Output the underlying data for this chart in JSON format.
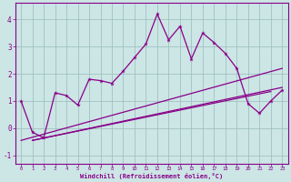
{
  "xlabel": "Windchill (Refroidissement éolien,°C)",
  "bg_color": "#cce5e5",
  "grid_color": "#99bbbb",
  "line_color": "#880088",
  "x_data": [
    0,
    1,
    2,
    3,
    4,
    5,
    6,
    7,
    8,
    9,
    10,
    11,
    12,
    13,
    14,
    15,
    16,
    17,
    18,
    19,
    20,
    21,
    22,
    23
  ],
  "y_main": [
    1.0,
    -0.15,
    -0.35,
    1.3,
    1.2,
    0.85,
    1.8,
    1.75,
    1.65,
    2.1,
    2.6,
    3.1,
    4.2,
    3.25,
    3.75,
    2.55,
    3.5,
    3.15,
    2.75,
    2.2,
    0.9,
    0.55,
    1.0,
    1.4
  ],
  "line1_x": [
    0,
    23
  ],
  "line1_y": [
    -0.45,
    2.2
  ],
  "line2_x": [
    1,
    23
  ],
  "line2_y": [
    -0.45,
    1.5
  ],
  "line3_x": [
    1,
    22
  ],
  "line3_y": [
    -0.45,
    1.35
  ],
  "ylim": [
    -1.3,
    4.6
  ],
  "xlim": [
    -0.5,
    23.5
  ],
  "yticks": [
    -1,
    0,
    1,
    2,
    3,
    4
  ],
  "xticks": [
    0,
    1,
    2,
    3,
    4,
    5,
    6,
    7,
    8,
    9,
    10,
    11,
    12,
    13,
    14,
    15,
    16,
    17,
    18,
    19,
    20,
    21,
    22,
    23
  ],
  "figsize": [
    3.2,
    2.0
  ],
  "dpi": 100
}
